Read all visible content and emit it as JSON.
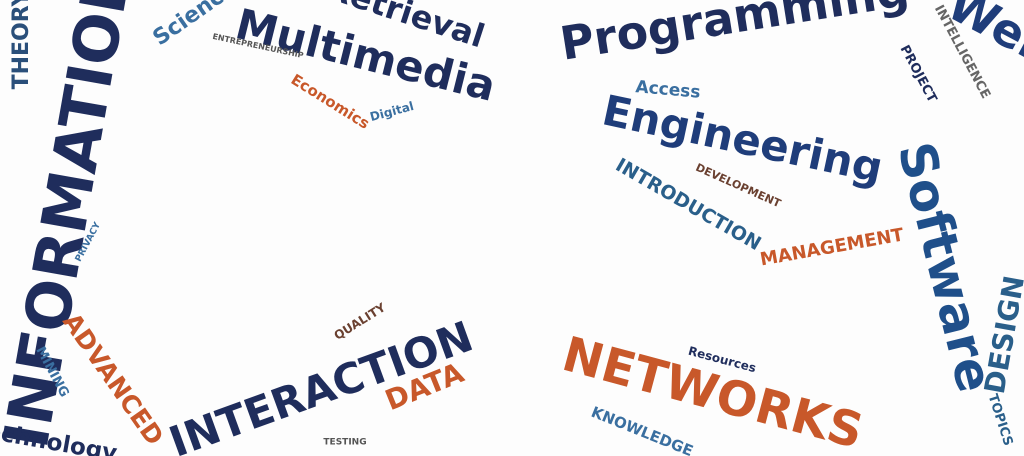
{
  "words": [
    "INFORMATION",
    "THEORY",
    "Science",
    "Retrieval",
    "Multimedia",
    "ENTREPRENEURSHIP",
    "Economics",
    "Digital",
    "Programming",
    "Web",
    "INTELLIGENCE",
    "PROJECT",
    "Access",
    "Engineering",
    "DEVELOPMENT",
    "INTRODUCTION",
    "MANAGEMENT",
    "Software",
    "DESIGN",
    "PRIVACY",
    "ADVANCED",
    "MINING",
    "Technology",
    "QUALITY",
    "INTERACTION",
    "DATA",
    "TESTING",
    "NETWORKS",
    "Resources",
    "KNOWLEDGE",
    "TOPICS"
  ]
}
